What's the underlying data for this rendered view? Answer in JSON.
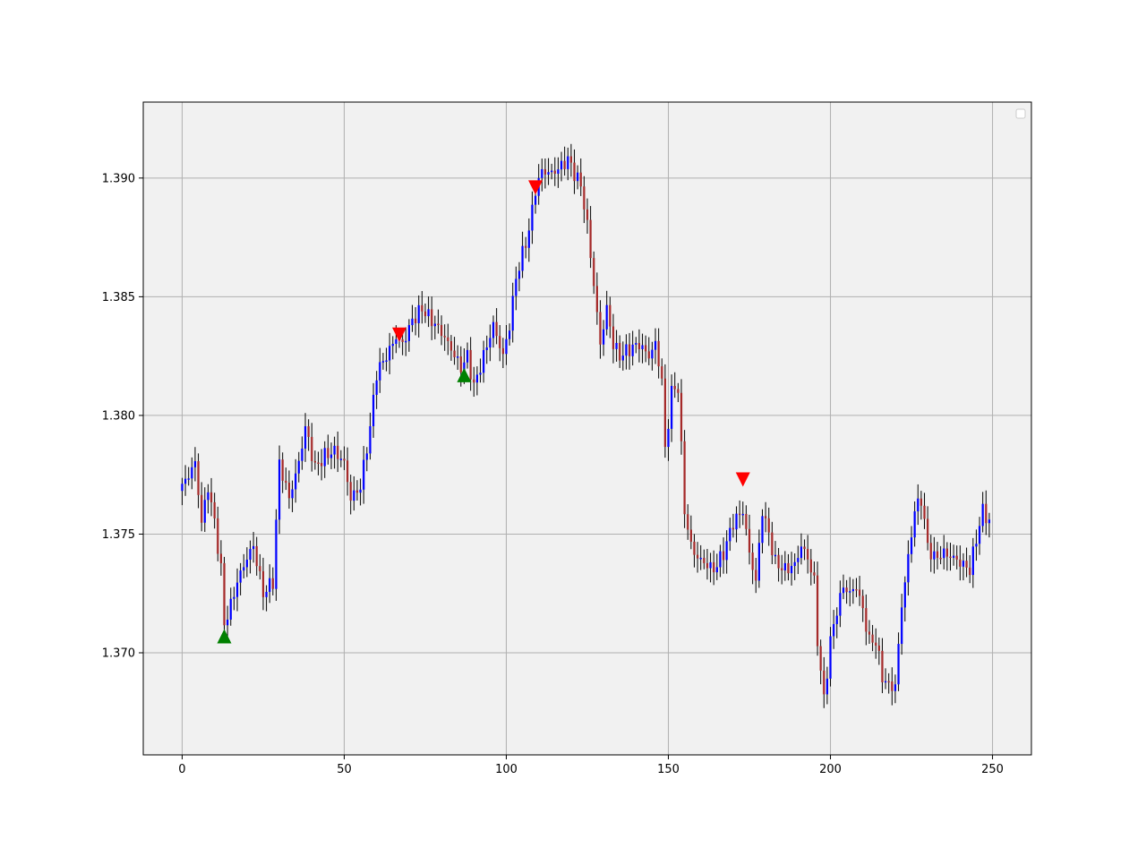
{
  "chart_data": {
    "type": "candlestick",
    "title": "",
    "xlabel": "",
    "ylabel": "",
    "xlim": [
      -12,
      262
    ],
    "ylim": [
      1.3657,
      1.3932
    ],
    "x_ticks": [
      0,
      50,
      100,
      150,
      200,
      250
    ],
    "x_tick_labels": [
      "0",
      "50",
      "100",
      "150",
      "200",
      "250"
    ],
    "y_ticks": [
      1.37,
      1.375,
      1.38,
      1.385,
      1.39
    ],
    "y_tick_labels": [
      "1.370",
      "1.375",
      "1.380",
      "1.385",
      "1.390"
    ],
    "grid": true,
    "legend": {
      "placement": "top-right",
      "entries": []
    },
    "colors": {
      "background": "#f1f1f1",
      "grid": "#b0b0b0",
      "up": "#0000ff",
      "down": "#a52a2a",
      "wick": "#000000",
      "buy_signal": "#008000",
      "sell_signal": "#ff0000"
    },
    "close_anchors": [
      [
        0,
        1.377
      ],
      [
        2,
        1.3775
      ],
      [
        4,
        1.378
      ],
      [
        6,
        1.3755
      ],
      [
        8,
        1.377
      ],
      [
        10,
        1.3755
      ],
      [
        12,
        1.3735
      ],
      [
        13,
        1.3712
      ],
      [
        15,
        1.372
      ],
      [
        17,
        1.373
      ],
      [
        20,
        1.374
      ],
      [
        22,
        1.3745
      ],
      [
        25,
        1.3725
      ],
      [
        28,
        1.373
      ],
      [
        30,
        1.378
      ],
      [
        33,
        1.3765
      ],
      [
        36,
        1.378
      ],
      [
        38,
        1.3795
      ],
      [
        41,
        1.3778
      ],
      [
        44,
        1.3783
      ],
      [
        47,
        1.3785
      ],
      [
        50,
        1.378
      ],
      [
        52,
        1.3765
      ],
      [
        55,
        1.377
      ],
      [
        58,
        1.3795
      ],
      [
        60,
        1.3818
      ],
      [
        63,
        1.3825
      ],
      [
        66,
        1.3833
      ],
      [
        68,
        1.383
      ],
      [
        71,
        1.384
      ],
      [
        74,
        1.3845
      ],
      [
        77,
        1.384
      ],
      [
        80,
        1.3835
      ],
      [
        83,
        1.3828
      ],
      [
        86,
        1.382
      ],
      [
        88,
        1.3825
      ],
      [
        90,
        1.3812
      ],
      [
        93,
        1.3825
      ],
      [
        96,
        1.3838
      ],
      [
        99,
        1.3825
      ],
      [
        101,
        1.3838
      ],
      [
        103,
        1.3858
      ],
      [
        105,
        1.3868
      ],
      [
        107,
        1.3878
      ],
      [
        109,
        1.3895
      ],
      [
        111,
        1.3903
      ],
      [
        114,
        1.3902
      ],
      [
        117,
        1.3905
      ],
      [
        119,
        1.3908
      ],
      [
        121,
        1.3902
      ],
      [
        123,
        1.3897
      ],
      [
        125,
        1.388
      ],
      [
        127,
        1.3855
      ],
      [
        129,
        1.383
      ],
      [
        131,
        1.3845
      ],
      [
        133,
        1.383
      ],
      [
        135,
        1.3825
      ],
      [
        138,
        1.3828
      ],
      [
        141,
        1.383
      ],
      [
        144,
        1.3825
      ],
      [
        146,
        1.383
      ],
      [
        148,
        1.3815
      ],
      [
        149,
        1.3785
      ],
      [
        151,
        1.381
      ],
      [
        153,
        1.3812
      ],
      [
        155,
        1.376
      ],
      [
        157,
        1.3745
      ],
      [
        159,
        1.374
      ],
      [
        161,
        1.3738
      ],
      [
        164,
        1.3735
      ],
      [
        167,
        1.3742
      ],
      [
        170,
        1.3755
      ],
      [
        173,
        1.376
      ],
      [
        175,
        1.3742
      ],
      [
        177,
        1.373
      ],
      [
        179,
        1.376
      ],
      [
        181,
        1.375
      ],
      [
        183,
        1.3738
      ],
      [
        186,
        1.3735
      ],
      [
        189,
        1.3737
      ],
      [
        191,
        1.3745
      ],
      [
        193,
        1.374
      ],
      [
        195,
        1.373
      ],
      [
        196,
        1.3705
      ],
      [
        198,
        1.368
      ],
      [
        200,
        1.3705
      ],
      [
        202,
        1.3718
      ],
      [
        204,
        1.3728
      ],
      [
        206,
        1.3725
      ],
      [
        208,
        1.3728
      ],
      [
        210,
        1.3718
      ],
      [
        212,
        1.3705
      ],
      [
        214,
        1.3705
      ],
      [
        216,
        1.369
      ],
      [
        218,
        1.3686
      ],
      [
        220,
        1.3686
      ],
      [
        222,
        1.372
      ],
      [
        224,
        1.374
      ],
      [
        226,
        1.376
      ],
      [
        228,
        1.3765
      ],
      [
        230,
        1.3745
      ],
      [
        232,
        1.374
      ],
      [
        235,
        1.3742
      ],
      [
        238,
        1.374
      ],
      [
        240,
        1.3738
      ],
      [
        243,
        1.3735
      ],
      [
        245,
        1.3748
      ],
      [
        247,
        1.376
      ],
      [
        249,
        1.3755
      ]
    ],
    "sell_signals": [
      [
        67,
        1.3834
      ],
      [
        109,
        1.3896
      ],
      [
        173,
        1.3773
      ]
    ],
    "buy_signals": [
      [
        13,
        1.3707
      ],
      [
        87,
        1.3817
      ]
    ]
  }
}
